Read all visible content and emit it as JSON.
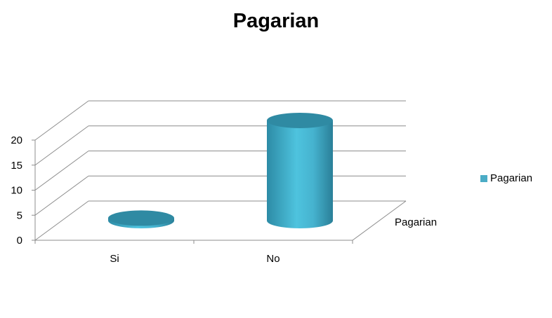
{
  "chart_data": {
    "type": "bar",
    "title": "Pagarian",
    "categories": [
      "Si",
      "No"
    ],
    "series": [
      {
        "name": "Pagarian",
        "values": [
          0.5,
          20
        ],
        "color": "#4BACC6"
      }
    ],
    "ylim": [
      0,
      20
    ],
    "yticks": [
      0,
      5,
      10,
      15,
      20
    ],
    "depth_axis_label": "Pagarian",
    "grid": true,
    "legend": "right",
    "style": "3d-cylinder"
  }
}
